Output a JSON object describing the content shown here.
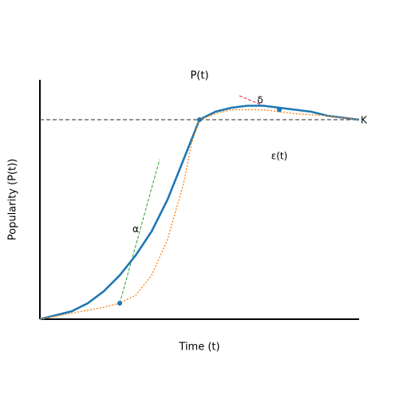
{
  "chart_data": {
    "type": "line",
    "title": "P(t)",
    "x_label": "Time (t)",
    "y_label": "Popularity (P(t))",
    "xlim": [
      0,
      10
    ],
    "ylim": [
      0,
      1.2
    ],
    "series": [
      {
        "color": "#1f77b4",
        "style": "solid",
        "x": [
          0,
          0.5,
          1,
          1.5,
          2,
          2.5,
          3,
          3.5,
          4,
          4.5,
          5,
          5.5,
          6,
          6.5,
          7,
          7.5,
          8,
          8.5,
          9,
          9.5,
          10
        ],
        "values": [
          0,
          0.02,
          0.04,
          0.08,
          0.14,
          0.22,
          0.32,
          0.44,
          0.6,
          0.8,
          1.0,
          1.04,
          1.06,
          1.07,
          1.07,
          1.06,
          1.05,
          1.04,
          1.02,
          1.01,
          1.0
        ]
      },
      {
        "color": "#ff7f0e",
        "style": "dotted",
        "x": [
          0,
          1,
          2,
          2.5,
          3,
          3.5,
          4,
          4.5,
          4.75,
          5,
          5.5,
          6,
          7,
          7.5,
          8,
          9,
          10
        ],
        "values": [
          0,
          0.03,
          0.06,
          0.08,
          0.12,
          0.22,
          0.4,
          0.68,
          0.88,
          1.0,
          1.03,
          1.05,
          1.05,
          1.04,
          1.03,
          1.02,
          1.0
        ]
      }
    ],
    "points": {
      "color": "#1f77b4",
      "x": [
        2.5,
        5,
        7.5
      ],
      "values": [
        0.08,
        1.0,
        1.05
      ]
    },
    "reference_lines": [
      {
        "color": "#2ca02c",
        "x": [
          2.5,
          3.75
        ],
        "values": [
          0.08,
          0.8
        ]
      },
      {
        "color": "#d62728",
        "x": [
          6.25,
          7
        ],
        "values": [
          1.12,
          1.07
        ]
      }
    ],
    "capacity": {
      "label": "K",
      "value": 1.0,
      "color": "#555555"
    },
    "annotations": [
      {
        "text": "α",
        "x": 3.0,
        "y": 0.45
      },
      {
        "text": "δ",
        "x": 6.9,
        "y": 1.096
      },
      {
        "text": "ε(t)",
        "x": 7.5,
        "y": 0.816
      }
    ]
  }
}
